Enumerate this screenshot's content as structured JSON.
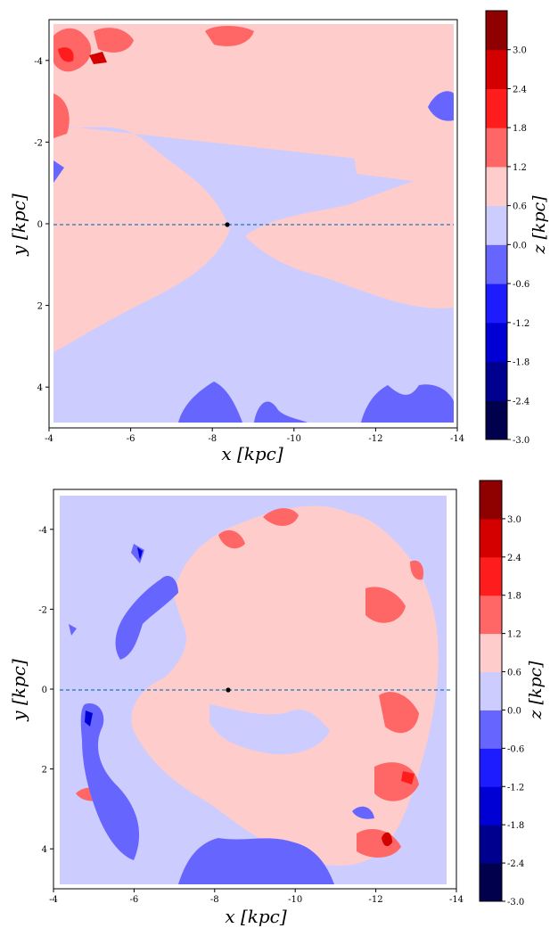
{
  "figure": {
    "panels": [
      {
        "id": "top",
        "xlabel": "x [kpc]",
        "ylabel": "y [kpc]",
        "x_ticks": [
          "-4",
          "-6",
          "-8",
          "-10",
          "-12",
          "-14"
        ],
        "y_ticks": [
          "-4",
          "-2",
          "0",
          "2",
          "4"
        ],
        "colorbar_label": "z [kpc]",
        "colorbar_ticks": [
          "-3.0",
          "-2.4",
          "-1.8",
          "-1.2",
          "-0.6",
          "0.0",
          "0.6",
          "1.2",
          "1.8",
          "2.4",
          "3.0"
        ]
      },
      {
        "id": "bottom",
        "xlabel": "x [kpc]",
        "ylabel": "y [kpc]",
        "x_ticks": [
          "-4",
          "-6",
          "-8",
          "-10",
          "-12",
          "-14"
        ],
        "y_ticks": [
          "-4",
          "-2",
          "0",
          "2",
          "4"
        ],
        "colorbar_label": "z [kpc]",
        "colorbar_ticks": [
          "-3.0",
          "-2.4",
          "-1.8",
          "-1.2",
          "-0.6",
          "0.0",
          "0.6",
          "1.2",
          "1.8",
          "2.4",
          "3.0"
        ]
      }
    ]
  },
  "chart_data": [
    {
      "type": "heatmap",
      "subtype": "filled-contour",
      "xlabel": "x [kpc]",
      "ylabel": "y [kpc]",
      "colorbar_label": "z [kpc]",
      "xlim": [
        -4,
        -14
      ],
      "ylim": [
        -5,
        5
      ],
      "y_inverted": true,
      "levels": [
        -3.0,
        -2.4,
        -1.8,
        -1.2,
        -0.6,
        0.0,
        0.6,
        1.2,
        1.8,
        2.4,
        3.0
      ],
      "colormap": [
        "#00004c",
        "#00008f",
        "#0000d4",
        "#1c1cff",
        "#6666ff",
        "#ccccff",
        "#ffcccc",
        "#ff6666",
        "#ff1c1c",
        "#d40000",
        "#8f0000"
      ],
      "sun_position": [
        -8.3,
        0
      ],
      "reference_line_y": 0,
      "regions": [
        {
          "level": "0.0 to 0.6",
          "description": "upper half (y < 0) and central wedge"
        },
        {
          "level": "-0.6 to 0.0",
          "description": "left wedge and lower half (y > 0)"
        },
        {
          "level": "-1.2 to -0.6",
          "description": "patches near y = 4.5 and y = -3"
        },
        {
          "level": "0.6 to 1.8",
          "description": "patches near x = -4.5, y = -4"
        }
      ]
    },
    {
      "type": "heatmap",
      "subtype": "filled-contour",
      "xlabel": "x [kpc]",
      "ylabel": "y [kpc]",
      "colorbar_label": "z [kpc]",
      "xlim": [
        -4,
        -14
      ],
      "ylim": [
        -5,
        5
      ],
      "y_inverted": true,
      "levels": [
        -3.0,
        -2.4,
        -1.8,
        -1.2,
        -0.6,
        0.0,
        0.6,
        1.2,
        1.8,
        2.4,
        3.0
      ],
      "colormap": [
        "#00004c",
        "#00008f",
        "#0000d4",
        "#1c1cff",
        "#6666ff",
        "#ccccff",
        "#ffcccc",
        "#ff6666",
        "#ff1c1c",
        "#d40000",
        "#8f0000"
      ],
      "sun_position": [
        -8.3,
        0
      ],
      "reference_line_y": 0,
      "regions": [
        {
          "level": "-0.6 to 0.0",
          "description": "background across the map"
        },
        {
          "level": "0.0 to 0.6",
          "description": "central region x = -7 to -13"
        },
        {
          "level": "-1.2 to -0.6",
          "description": "left arc x = -5 to -7 and bottom band y = 4.5"
        },
        {
          "level": "0.6 to 1.8",
          "description": "right edge x = -12 to -13, y = 0.5 to 4.5"
        }
      ]
    }
  ]
}
